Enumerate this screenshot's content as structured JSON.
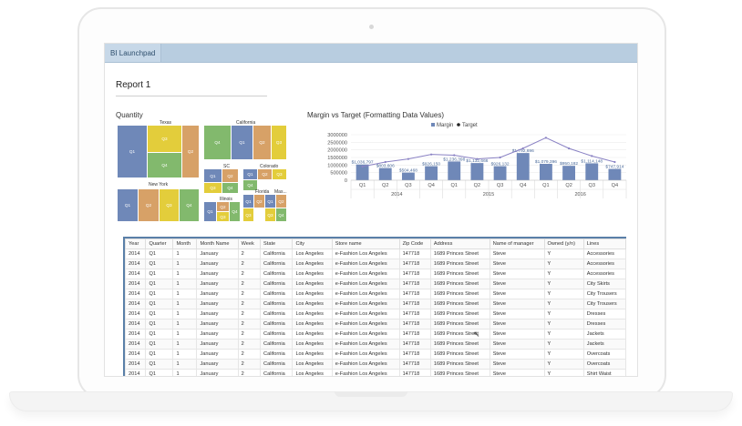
{
  "app": {
    "tab_label": "BI Launchpad"
  },
  "report": {
    "title": "Report 1"
  },
  "quantity": {
    "title": "Quantity",
    "groups": [
      {
        "name": "Texas",
        "cells": [
          "Q1",
          "Q3",
          "Q4",
          "Q2"
        ]
      },
      {
        "name": "New York",
        "cells": [
          "Q1",
          "Q2",
          "Q3",
          "Q4"
        ]
      },
      {
        "name": "California",
        "cells": [
          "Q4",
          "Q1",
          "Q2",
          "Q3"
        ]
      },
      {
        "name": "SC",
        "cells": [
          "Q1",
          "Q2",
          "Q3",
          "Q4"
        ]
      },
      {
        "name": "Colorado",
        "cells": [
          "Q1",
          "Q2",
          "Q3",
          "Q4"
        ]
      },
      {
        "name": "Illinois",
        "cells": [
          "Q1",
          "Q2",
          "Q3",
          "Q4"
        ]
      },
      {
        "name": "Florida",
        "cells": [
          "Q1",
          "Q2",
          "Q3"
        ]
      },
      {
        "name": "Mas...",
        "cells": [
          "Q1",
          "Q2",
          "Q3",
          "Q4"
        ]
      }
    ],
    "colors": {
      "Q1": "#6f88b8",
      "Q2": "#d7a167",
      "Q3": "#e3cd3b",
      "Q4": "#82b96d"
    }
  },
  "chart_data": {
    "type": "bar",
    "title": "Margin vs Target (Formatting Data Values)",
    "legend": [
      "Margin",
      "Target"
    ],
    "legend_position": "top",
    "categories": [
      "Q1",
      "Q2",
      "Q3",
      "Q4",
      "Q1",
      "Q2",
      "Q3",
      "Q4",
      "Q1",
      "Q2",
      "Q3",
      "Q4"
    ],
    "years": [
      "2014",
      "2015",
      "2016"
    ],
    "series": [
      {
        "name": "Margin",
        "type": "bar",
        "values": [
          1036797,
          803606,
          504468,
          926150,
          1236398,
          1132666,
          926132,
          1792696,
          1079396,
          950182,
          1114148,
          747914
        ]
      },
      {
        "name": "Target",
        "type": "line",
        "values": [
          900000,
          1200000,
          1400000,
          1700000,
          1650000,
          1400000,
          1500000,
          2100000,
          2800000,
          2100000,
          1600000,
          1200000
        ]
      }
    ],
    "data_labels": [
      "$1,036,797",
      "$803,606",
      "$504,468",
      "$926,150",
      "$1,236,398",
      "$1,132,666",
      "$926,132",
      "$1,792,696",
      "$1,079,396",
      "$950,182",
      "$1,114,148",
      "$747,914"
    ],
    "yticks": [
      "3000000",
      "2500000",
      "2000000",
      "1500000",
      "1000000",
      "500000",
      "0"
    ],
    "ylim": [
      0,
      3000000
    ],
    "colors": {
      "Margin": "#6f88b8",
      "Target": "#8a82c4"
    }
  },
  "table": {
    "columns": [
      "Year",
      "Quarter",
      "Month",
      "Month Name",
      "Week",
      "State",
      "City",
      "Store name",
      "Zip Code",
      "Address",
      "Name of manager",
      "Owned (y/n)",
      "Lines"
    ],
    "rows": [
      [
        "2014",
        "Q1",
        "1",
        "January",
        "2",
        "California",
        "Los Angeles",
        "e-Fashion Los Angeles",
        "147718",
        "1689 Princes Street",
        "Steve",
        "Y",
        "Accessories"
      ],
      [
        "2014",
        "Q1",
        "1",
        "January",
        "2",
        "California",
        "Los Angeles",
        "e-Fashion Los Angeles",
        "147718",
        "1689 Princes Street",
        "Steve",
        "Y",
        "Accessories"
      ],
      [
        "2014",
        "Q1",
        "1",
        "January",
        "2",
        "California",
        "Los Angeles",
        "e-Fashion Los Angeles",
        "147718",
        "1689 Princes Street",
        "Steve",
        "Y",
        "Accessories"
      ],
      [
        "2014",
        "Q1",
        "1",
        "January",
        "2",
        "California",
        "Los Angeles",
        "e-Fashion Los Angeles",
        "147718",
        "1689 Princes Street",
        "Steve",
        "Y",
        "City Skirts"
      ],
      [
        "2014",
        "Q1",
        "1",
        "January",
        "2",
        "California",
        "Los Angeles",
        "e-Fashion Los Angeles",
        "147718",
        "1689 Princes Street",
        "Steve",
        "Y",
        "City Trousers"
      ],
      [
        "2014",
        "Q1",
        "1",
        "January",
        "2",
        "California",
        "Los Angeles",
        "e-Fashion Los Angeles",
        "147718",
        "1689 Princes Street",
        "Steve",
        "Y",
        "City Trousers"
      ],
      [
        "2014",
        "Q1",
        "1",
        "January",
        "2",
        "California",
        "Los Angeles",
        "e-Fashion Los Angeles",
        "147718",
        "1689 Princes Street",
        "Steve",
        "Y",
        "Dresses"
      ],
      [
        "2014",
        "Q1",
        "1",
        "January",
        "2",
        "California",
        "Los Angeles",
        "e-Fashion Los Angeles",
        "147718",
        "1689 Princes Street",
        "Steve",
        "Y",
        "Dresses"
      ],
      [
        "2014",
        "Q1",
        "1",
        "January",
        "2",
        "California",
        "Los Angeles",
        "e-Fashion Los Angeles",
        "147718",
        "1689 Princes Street",
        "Steve",
        "Y",
        "Jackets"
      ],
      [
        "2014",
        "Q1",
        "1",
        "January",
        "2",
        "California",
        "Los Angeles",
        "e-Fashion Los Angeles",
        "147718",
        "1689 Princes Street",
        "Steve",
        "Y",
        "Jackets"
      ],
      [
        "2014",
        "Q1",
        "1",
        "January",
        "2",
        "California",
        "Los Angeles",
        "e-Fashion Los Angeles",
        "147718",
        "1689 Princes Street",
        "Steve",
        "Y",
        "Overcoats"
      ],
      [
        "2014",
        "Q1",
        "1",
        "January",
        "2",
        "California",
        "Los Angeles",
        "e-Fashion Los Angeles",
        "147718",
        "1689 Princes Street",
        "Steve",
        "Y",
        "Overcoats"
      ],
      [
        "2014",
        "Q1",
        "1",
        "January",
        "2",
        "California",
        "Los Angeles",
        "e-Fashion Los Angeles",
        "147718",
        "1689 Princes Street",
        "Steve",
        "Y",
        "Shirt Waist"
      ]
    ]
  }
}
